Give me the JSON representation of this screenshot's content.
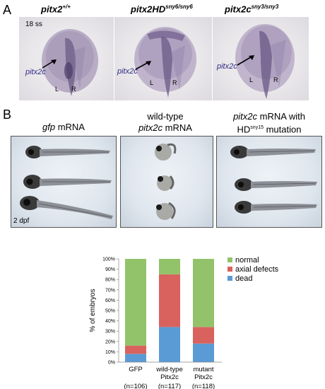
{
  "panel_a": {
    "letter": "A",
    "stage": "18 ss",
    "embryos": [
      {
        "genotype": "pitx2",
        "superscript": "+/+",
        "arrow_label": "pitx2c",
        "left": "L",
        "right": "R"
      },
      {
        "genotype": "pitx2HD",
        "superscript": "sny6/sny6",
        "arrow_label": "pitx2c",
        "left": "L",
        "right": "R"
      },
      {
        "genotype": "pitx2c",
        "superscript": "sny3/sny3",
        "arrow_label": "pitx2c",
        "left": "L",
        "right": "R"
      }
    ]
  },
  "panel_b": {
    "letter": "B",
    "conditions": [
      {
        "line1_italic": "gfp",
        "line1_rest": " mRNA"
      },
      {
        "line1": "wild-type",
        "line2_italic": "pitx2c",
        "line2_rest": " mRNA"
      },
      {
        "line1_italic": "pitx2c",
        "line1_rest": " mRNA with",
        "line2_pre": "HD",
        "line2_sup": "sny15",
        "line2_rest": " mutation"
      }
    ],
    "age": "2 dpf"
  },
  "chart_data": {
    "type": "bar",
    "stacked": true,
    "ylabel": "% of embryos",
    "ylim": [
      0,
      100
    ],
    "yticks": [
      "0%",
      "10%",
      "20%",
      "30%",
      "40%",
      "50%",
      "60%",
      "70%",
      "80%",
      "90%",
      "100%"
    ],
    "categories": [
      "GFP",
      "wild-type Pitx2c",
      "mutant Pitx2c"
    ],
    "category_lines": [
      [
        "GFP"
      ],
      [
        "wild-type",
        "Pitx2c"
      ],
      [
        "mutant",
        "Pitx2c"
      ]
    ],
    "sample_sizes": [
      "(n=106)",
      "(n=117)",
      "(n=118)"
    ],
    "series": [
      {
        "name": "dead",
        "color": "#5a9bd5",
        "values": [
          8,
          34,
          18
        ]
      },
      {
        "name": "axial defects",
        "color": "#d9625e",
        "values": [
          8,
          51,
          16
        ]
      },
      {
        "name": "normal",
        "color": "#92c36a",
        "values": [
          84,
          15,
          66
        ]
      }
    ],
    "legend_order": [
      "normal",
      "axial defects",
      "dead"
    ],
    "legend_position": "right"
  }
}
